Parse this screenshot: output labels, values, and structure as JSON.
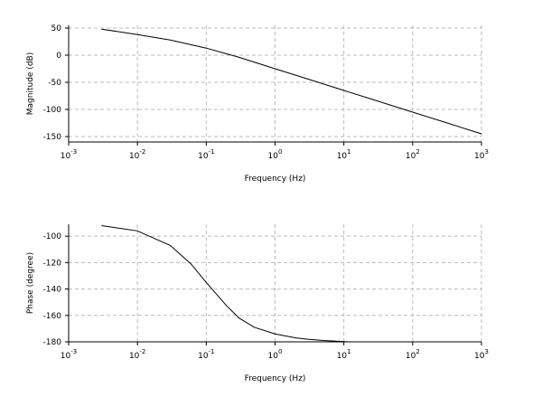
{
  "chart_data": [
    {
      "type": "line",
      "x_label": "Frequency (Hz)",
      "y_label": "Magnitude (dB)",
      "xscale": "log",
      "grid": true,
      "color": "#000000",
      "x": [
        0.003,
        0.01,
        0.03,
        0.1,
        0.3,
        1,
        3,
        10,
        30,
        100,
        300,
        1000
      ],
      "values": [
        48,
        38,
        28,
        13,
        -4,
        -25,
        -44,
        -65,
        -84,
        -105,
        -124,
        -145
      ],
      "xlim": [
        0.001,
        1000
      ],
      "ylim": [
        -160,
        55
      ],
      "xticks": [
        {
          "value": 0.001,
          "label": "10",
          "exponent": "-3"
        },
        {
          "value": 0.01,
          "label": "10",
          "exponent": "-2"
        },
        {
          "value": 0.1,
          "label": "10",
          "exponent": "-1"
        },
        {
          "value": 1,
          "label": "10",
          "exponent": "0"
        },
        {
          "value": 10,
          "label": "10",
          "exponent": "1"
        },
        {
          "value": 100,
          "label": "10",
          "exponent": "2"
        },
        {
          "value": 1000,
          "label": "10",
          "exponent": "3"
        }
      ],
      "yticks": [
        50,
        0,
        -50,
        -100,
        -150
      ]
    },
    {
      "type": "line",
      "x_label": "Frequency (Hz)",
      "y_label": "Phase (degree)",
      "xscale": "log",
      "grid": true,
      "color": "#000000",
      "x": [
        0.003,
        0.01,
        0.03,
        0.06,
        0.1,
        0.2,
        0.3,
        0.5,
        1,
        2,
        3,
        5,
        12
      ],
      "values": [
        -92,
        -96,
        -107,
        -121,
        -135,
        -153,
        -162,
        -169,
        -174,
        -177,
        -178,
        -179,
        -180
      ],
      "xlim": [
        0.001,
        1000
      ],
      "ylim": [
        -180,
        -91
      ],
      "xticks": [
        {
          "value": 0.001,
          "label": "10",
          "exponent": "-3"
        },
        {
          "value": 0.01,
          "label": "10",
          "exponent": "-2"
        },
        {
          "value": 0.1,
          "label": "10",
          "exponent": "-1"
        },
        {
          "value": 1,
          "label": "10",
          "exponent": "0"
        },
        {
          "value": 10,
          "label": "10",
          "exponent": "1"
        },
        {
          "value": 100,
          "label": "10",
          "exponent": "2"
        },
        {
          "value": 1000,
          "label": "10",
          "exponent": "3"
        }
      ],
      "yticks": [
        -100,
        -120,
        -140,
        -160,
        -180
      ]
    }
  ]
}
